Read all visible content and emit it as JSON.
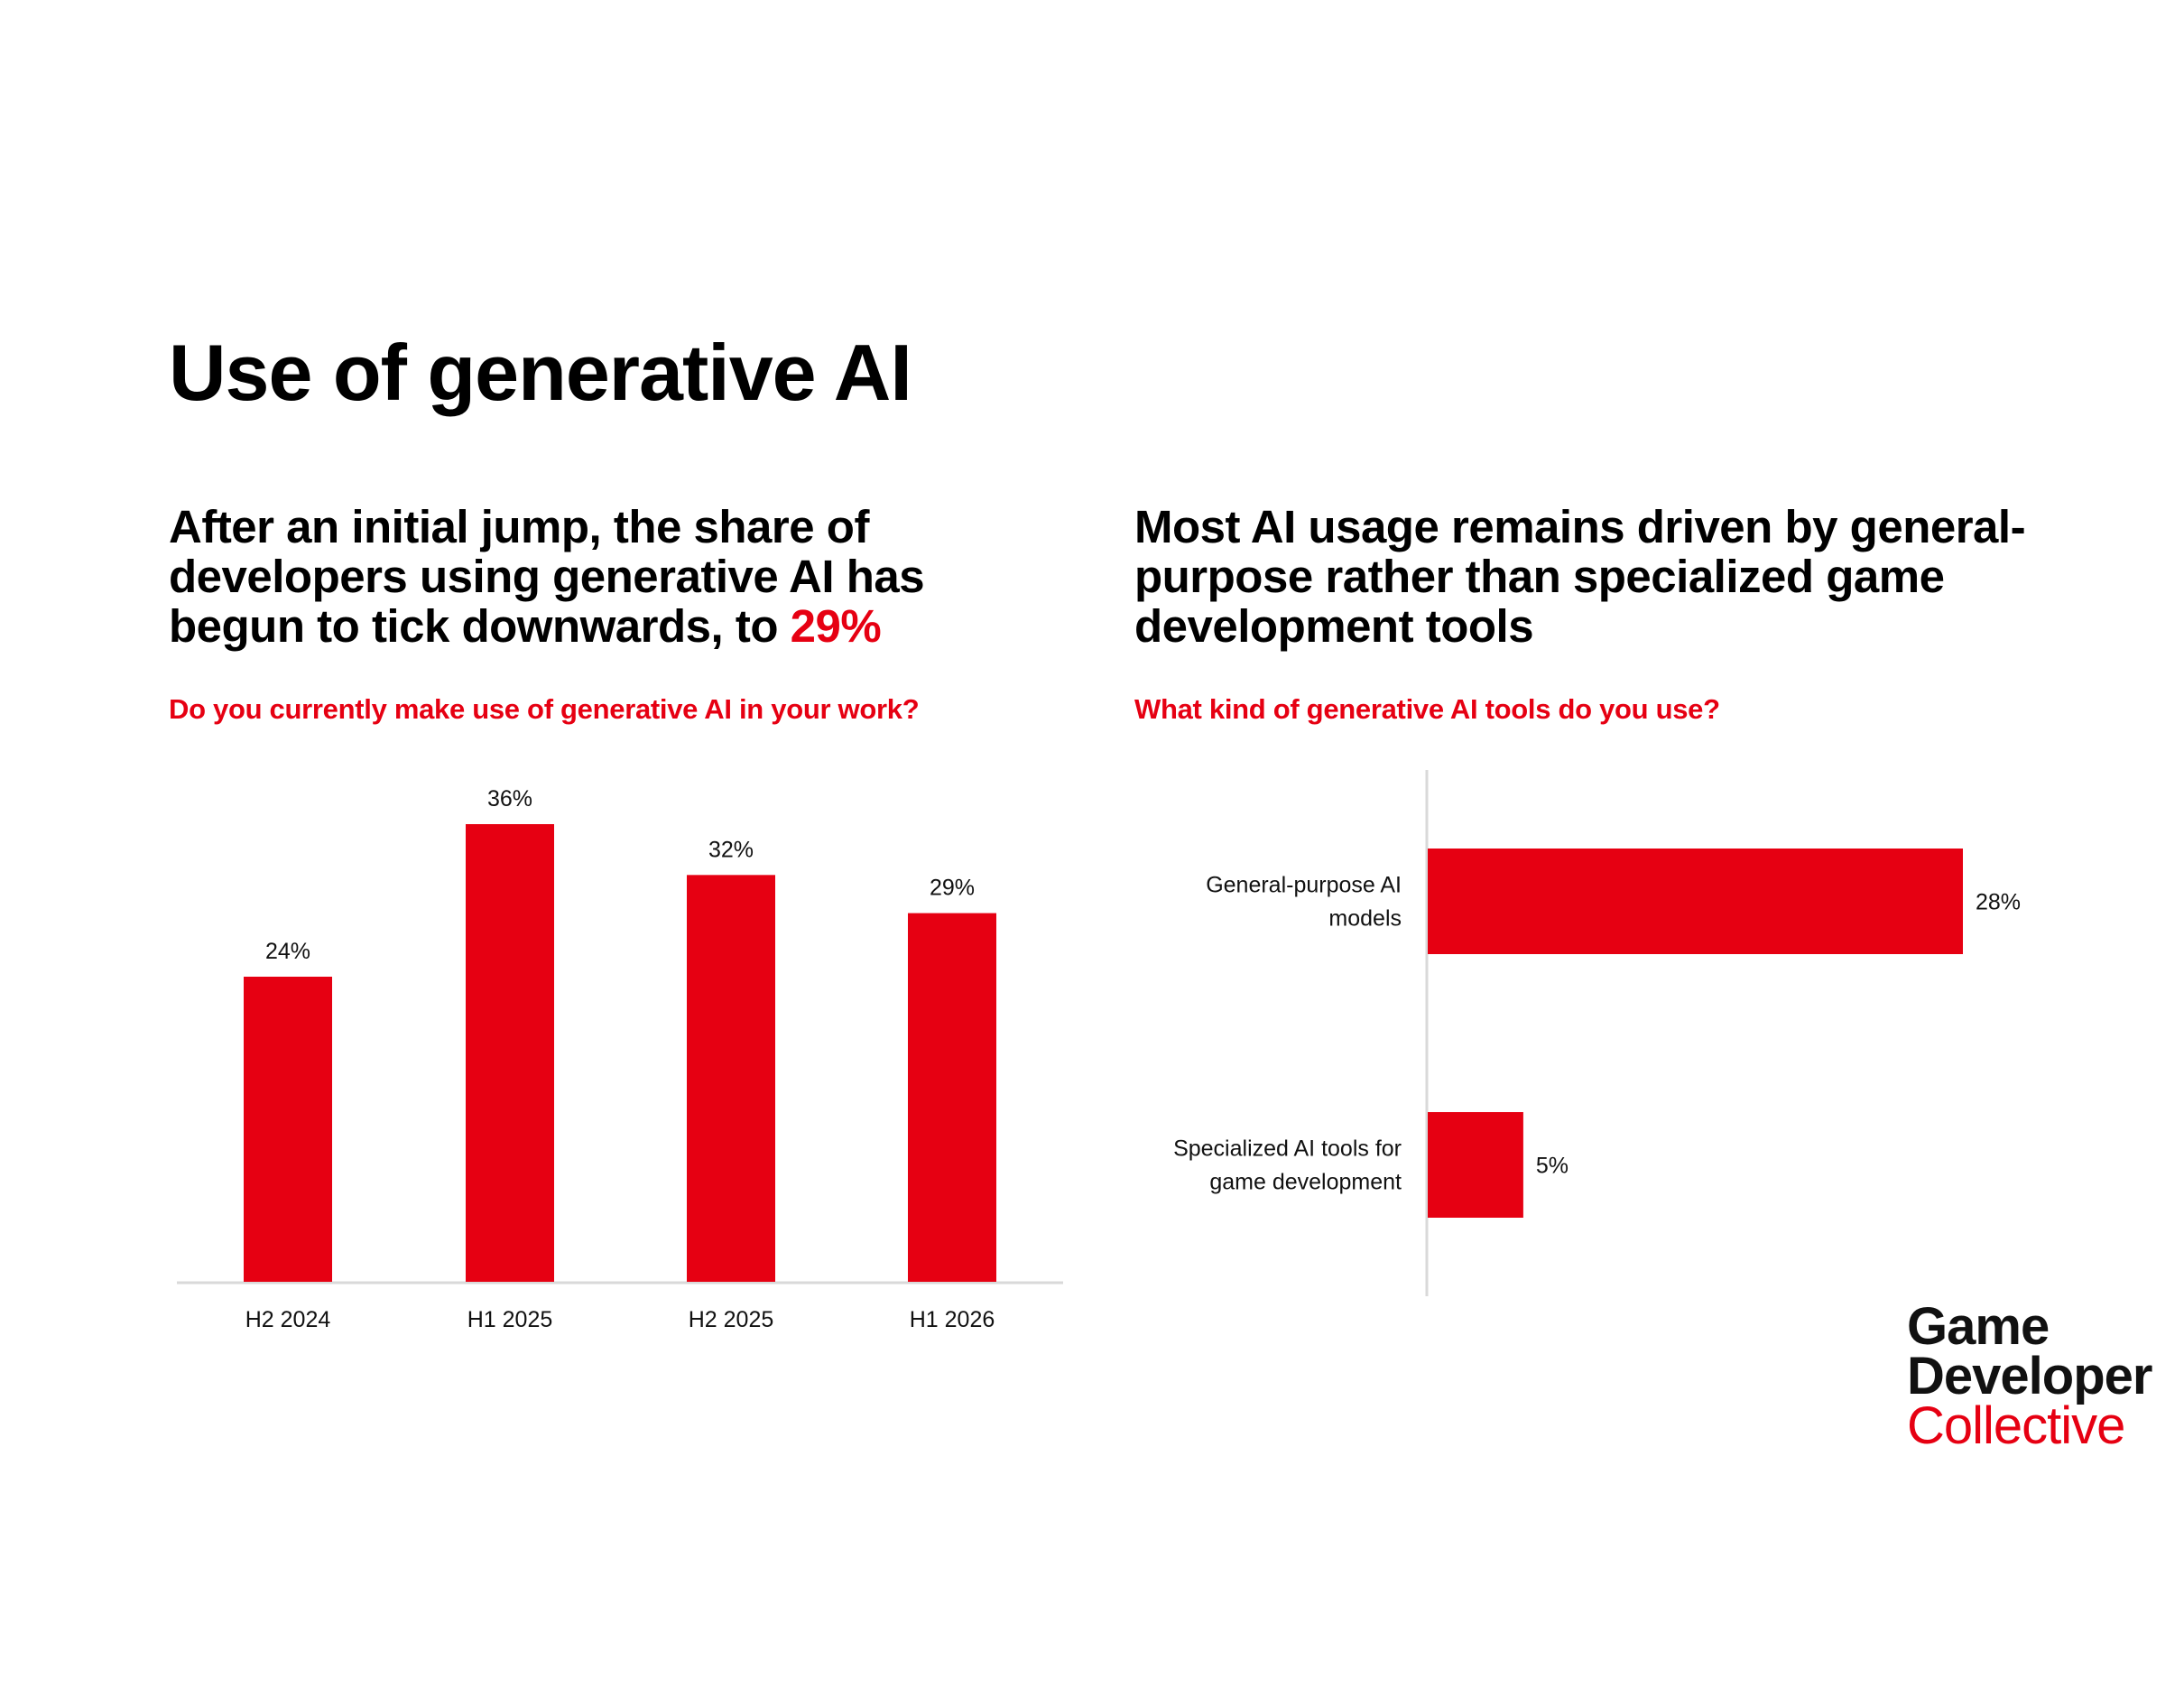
{
  "title": "Use of generative AI",
  "left": {
    "headline_pre": "After an initial jump, the share of developers using generative AI has begun to tick downwards, to ",
    "headline_accent": "29%",
    "question": "Do you currently make use of generative AI in your work?"
  },
  "right": {
    "headline": "Most AI usage remains driven by general-purpose rather than specialized game development tools",
    "question": "What kind of generative AI tools do you use?"
  },
  "logo": {
    "line1": "Game",
    "line2": "Developer",
    "line3": "Collective"
  },
  "colors": {
    "accent": "#e60012",
    "axis": "#d9d9d9"
  },
  "chart_data": [
    {
      "type": "bar",
      "orientation": "vertical",
      "categories": [
        "H2 2024",
        "H1 2025",
        "H2 2025",
        "H1 2026"
      ],
      "values": [
        24,
        36,
        32,
        29
      ],
      "data_labels": [
        "24%",
        "36%",
        "32%",
        "29%"
      ],
      "unit": "%",
      "ylim": [
        0,
        36
      ],
      "grid": false,
      "color": "#e60012"
    },
    {
      "type": "bar",
      "orientation": "horizontal",
      "categories": [
        "General-purpose AI models",
        "Specialized AI tools for game development"
      ],
      "category_lines": [
        [
          "General-purpose AI",
          "models"
        ],
        [
          "Specialized AI tools for",
          "game development"
        ]
      ],
      "values": [
        28,
        5
      ],
      "data_labels": [
        "28%",
        "5%"
      ],
      "unit": "%",
      "xlim": [
        0,
        28
      ],
      "grid": false,
      "color": "#e60012"
    }
  ]
}
